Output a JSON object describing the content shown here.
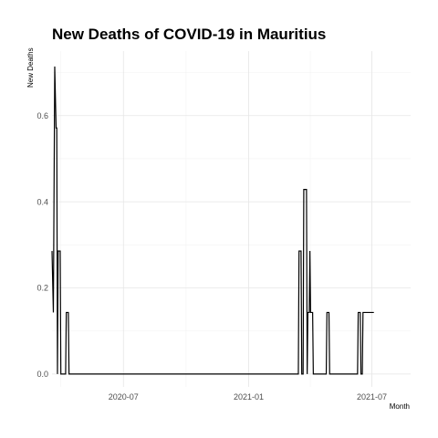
{
  "chart_data": {
    "type": "line",
    "title": "New Deaths of COVID-19 in Mauritius",
    "xlabel": "Month",
    "ylabel": "New Deaths",
    "ylim": [
      -0.03,
      0.75
    ],
    "xlim": [
      "2020-03-18",
      "2021-08-27"
    ],
    "grid": true,
    "y_ticks": [
      0.0,
      0.2,
      0.4,
      0.6
    ],
    "y_tick_labels": [
      "0.0",
      "0.2",
      "0.4",
      "0.6"
    ],
    "x_ticks": [
      "2020-07-01",
      "2021-01-01",
      "2021-07-01"
    ],
    "x_tick_labels": [
      "2020-07",
      "2021-01",
      "2021-07"
    ],
    "series": [
      {
        "color": "#000000",
        "points": [
          [
            "2020-03-18",
            0.2857
          ],
          [
            "2020-03-20",
            0.1429
          ],
          [
            "2020-03-22",
            0.7143
          ],
          [
            "2020-03-24",
            0.5714
          ],
          [
            "2020-03-25",
            0.5714
          ],
          [
            "2020-03-26",
            0.0
          ],
          [
            "2020-03-27",
            0.2857
          ],
          [
            "2020-03-30",
            0.2857
          ],
          [
            "2020-03-31",
            0.0
          ],
          [
            "2020-04-07",
            0.0
          ],
          [
            "2020-04-08",
            0.1429
          ],
          [
            "2020-04-11",
            0.1429
          ],
          [
            "2020-04-12",
            0.0
          ],
          [
            "2021-03-15",
            0.0
          ],
          [
            "2021-03-16",
            0.2857
          ],
          [
            "2021-03-19",
            0.2857
          ],
          [
            "2021-03-20",
            0.0
          ],
          [
            "2021-03-22",
            0.0
          ],
          [
            "2021-03-23",
            0.4286
          ],
          [
            "2021-03-27",
            0.4286
          ],
          [
            "2021-03-28",
            0.0
          ],
          [
            "2021-03-29",
            0.1429
          ],
          [
            "2021-03-31",
            0.1429
          ],
          [
            "2021-04-01",
            0.2857
          ],
          [
            "2021-04-02",
            0.1429
          ],
          [
            "2021-04-05",
            0.1429
          ],
          [
            "2021-04-06",
            0.0
          ],
          [
            "2021-04-25",
            0.0
          ],
          [
            "2021-04-26",
            0.1429
          ],
          [
            "2021-04-29",
            0.1429
          ],
          [
            "2021-04-30",
            0.0
          ],
          [
            "2021-06-10",
            0.0
          ],
          [
            "2021-06-11",
            0.1429
          ],
          [
            "2021-06-14",
            0.1429
          ],
          [
            "2021-06-15",
            0.0
          ],
          [
            "2021-06-17",
            0.0
          ],
          [
            "2021-06-18",
            0.1429
          ],
          [
            "2021-07-04",
            0.1429
          ]
        ]
      }
    ]
  }
}
